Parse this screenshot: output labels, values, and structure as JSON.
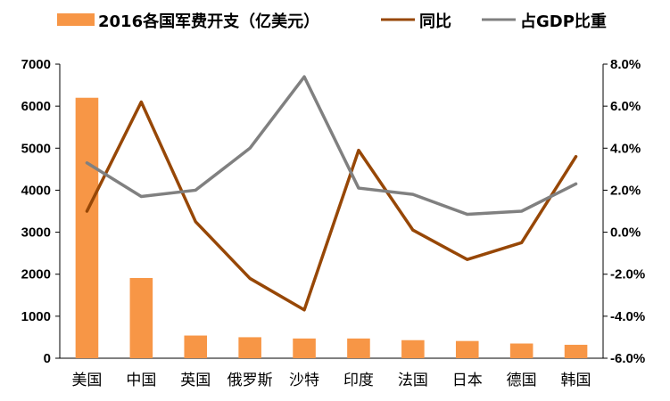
{
  "chart_data": {
    "type": "bar",
    "categories": [
      "美国",
      "中国",
      "英国",
      "俄罗斯",
      "沙特",
      "印度",
      "法国",
      "日本",
      "德国",
      "韩国"
    ],
    "series": [
      {
        "name": "2016各国军费开支（亿美元）",
        "type": "bar",
        "axis": "left",
        "color": "#F79646",
        "values": [
          6200,
          1910,
          540,
          500,
          470,
          470,
          430,
          410,
          350,
          320
        ]
      },
      {
        "name": "同比",
        "type": "line",
        "axis": "right",
        "color": "#974706",
        "values": [
          1.0,
          6.2,
          0.5,
          -2.2,
          -3.7,
          3.9,
          0.1,
          -1.3,
          -0.5,
          3.6
        ]
      },
      {
        "name": "占GDP比重",
        "type": "line",
        "axis": "right",
        "color": "#808080",
        "values": [
          3.3,
          1.7,
          2.0,
          4.0,
          7.4,
          2.1,
          1.8,
          0.85,
          1.0,
          2.3
        ]
      }
    ],
    "left_axis": {
      "min": 0,
      "max": 7000,
      "step": 1000,
      "ticks": [
        "0",
        "1000",
        "2000",
        "3000",
        "4000",
        "5000",
        "6000",
        "7000"
      ]
    },
    "right_axis": {
      "min": -6,
      "max": 8,
      "step": 2,
      "ticks": [
        "-6.0%",
        "-4.0%",
        "-2.0%",
        "0.0%",
        "2.0%",
        "4.0%",
        "6.0%",
        "8.0%"
      ]
    },
    "grid": false,
    "legend": "top"
  }
}
